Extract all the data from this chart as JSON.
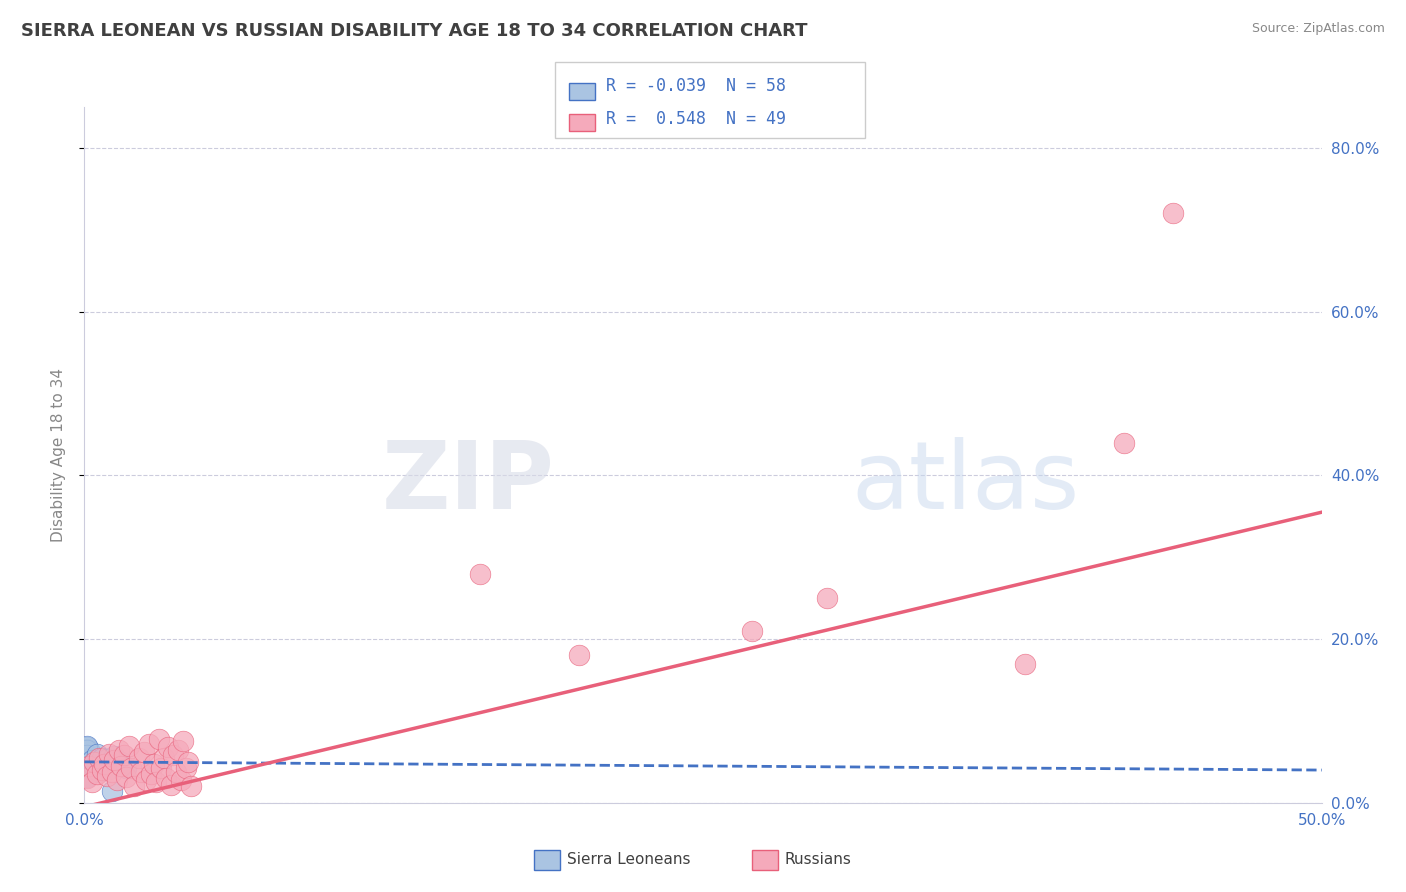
{
  "title": "SIERRA LEONEAN VS RUSSIAN DISABILITY AGE 18 TO 34 CORRELATION CHART",
  "source_text": "Source: ZipAtlas.com",
  "ylabel": "Disability Age 18 to 34",
  "xlim": [
    0.0,
    0.5
  ],
  "ylim": [
    0.0,
    0.85
  ],
  "xticks": [
    0.0,
    0.1,
    0.2,
    0.3,
    0.4,
    0.5
  ],
  "xtick_labels": [
    "0.0%",
    "",
    "",
    "",
    "",
    "50.0%"
  ],
  "yticks": [
    0.0,
    0.2,
    0.4,
    0.6,
    0.8
  ],
  "ytick_labels_right": [
    "0.0%",
    "20.0%",
    "40.0%",
    "60.0%",
    "80.0%"
  ],
  "legend_R_blue": "-0.039",
  "legend_N_blue": "58",
  "legend_R_pink": "0.548",
  "legend_N_pink": "49",
  "blue_color": "#aac4e2",
  "pink_color": "#f5aabb",
  "blue_line_color": "#4472c4",
  "pink_line_color": "#e8607a",
  "watermark_zip": "ZIP",
  "watermark_atlas": "atlas",
  "background_color": "#ffffff",
  "grid_color": "#ccccdd",
  "title_color": "#404040",
  "axis_color": "#4472c4",
  "blue_scatter_x": [
    0.001,
    0.001,
    0.002,
    0.001,
    0.001,
    0.002,
    0.001,
    0.001,
    0.002,
    0.001,
    0.001,
    0.001,
    0.002,
    0.001,
    0.001,
    0.002,
    0.001,
    0.001,
    0.001,
    0.001,
    0.001,
    0.001,
    0.001,
    0.002,
    0.001,
    0.001,
    0.001,
    0.001,
    0.001,
    0.002,
    0.001,
    0.001,
    0.001,
    0.001,
    0.001,
    0.001,
    0.001,
    0.001,
    0.001,
    0.001,
    0.001,
    0.001,
    0.001,
    0.001,
    0.003,
    0.003,
    0.004,
    0.005,
    0.006,
    0.007,
    0.008,
    0.009,
    0.01,
    0.012,
    0.013,
    0.015,
    0.017,
    0.011
  ],
  "blue_scatter_y": [
    0.05,
    0.045,
    0.06,
    0.055,
    0.04,
    0.065,
    0.048,
    0.052,
    0.042,
    0.058,
    0.035,
    0.062,
    0.047,
    0.053,
    0.038,
    0.057,
    0.044,
    0.049,
    0.041,
    0.056,
    0.037,
    0.063,
    0.046,
    0.054,
    0.039,
    0.061,
    0.043,
    0.051,
    0.036,
    0.059,
    0.048,
    0.033,
    0.066,
    0.045,
    0.055,
    0.04,
    0.068,
    0.05,
    0.034,
    0.064,
    0.042,
    0.058,
    0.031,
    0.07,
    0.048,
    0.052,
    0.044,
    0.06,
    0.038,
    0.055,
    0.047,
    0.053,
    0.041,
    0.057,
    0.045,
    0.05,
    0.043,
    0.015
  ],
  "pink_scatter_x": [
    0.001,
    0.002,
    0.003,
    0.004,
    0.005,
    0.006,
    0.007,
    0.008,
    0.009,
    0.01,
    0.011,
    0.012,
    0.013,
    0.014,
    0.015,
    0.016,
    0.017,
    0.018,
    0.019,
    0.02,
    0.022,
    0.023,
    0.024,
    0.025,
    0.026,
    0.027,
    0.028,
    0.029,
    0.03,
    0.031,
    0.032,
    0.033,
    0.034,
    0.035,
    0.036,
    0.037,
    0.038,
    0.039,
    0.04,
    0.041,
    0.042,
    0.043,
    0.16,
    0.2,
    0.27,
    0.3,
    0.38,
    0.42,
    0.44
  ],
  "pink_scatter_y": [
    0.03,
    0.045,
    0.025,
    0.05,
    0.035,
    0.055,
    0.04,
    0.048,
    0.033,
    0.06,
    0.038,
    0.052,
    0.028,
    0.065,
    0.045,
    0.058,
    0.032,
    0.07,
    0.042,
    0.02,
    0.055,
    0.038,
    0.062,
    0.028,
    0.072,
    0.035,
    0.048,
    0.025,
    0.078,
    0.042,
    0.055,
    0.03,
    0.068,
    0.022,
    0.058,
    0.038,
    0.065,
    0.028,
    0.075,
    0.042,
    0.05,
    0.02,
    0.28,
    0.18,
    0.21,
    0.25,
    0.17,
    0.44,
    0.72
  ],
  "pink_trend_x0": 0.0,
  "pink_trend_y0": -0.005,
  "pink_trend_x1": 0.5,
  "pink_trend_y1": 0.355,
  "blue_trend_x0": 0.0,
  "blue_trend_y0": 0.05,
  "blue_trend_x1": 0.5,
  "blue_trend_y1": 0.04
}
